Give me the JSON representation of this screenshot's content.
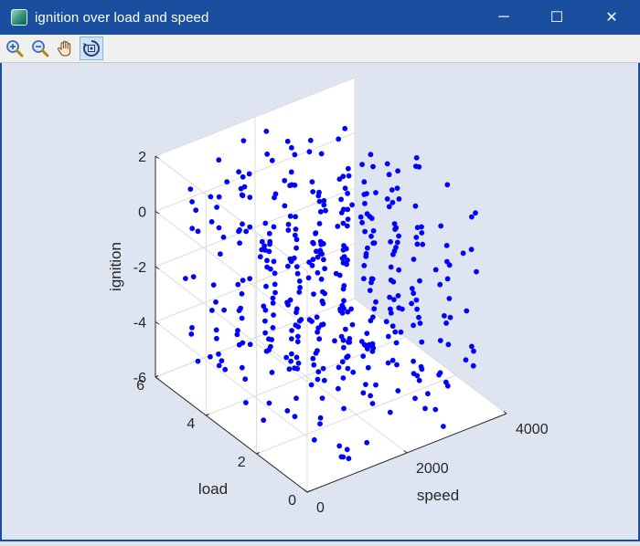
{
  "window": {
    "title": "ignition over load and speed",
    "controls": {
      "minimize": "─",
      "maximize": "☐",
      "close": "✕"
    }
  },
  "toolbar": {
    "tools": [
      {
        "name": "zoom-in",
        "active": false
      },
      {
        "name": "zoom-out",
        "active": false
      },
      {
        "name": "pan",
        "active": false
      },
      {
        "name": "rotate-3d",
        "active": true
      }
    ]
  },
  "colors": {
    "titlebar": "#1a4fa0",
    "plot_background": "#dfe5f0",
    "axes_pane": "#ffffff",
    "marker": "#0000ff"
  },
  "chart_data": {
    "type": "scatter",
    "title": "ignition over load and speed",
    "xlabel": "speed",
    "ylabel": "load",
    "zlabel": "ignition",
    "xlim": [
      0,
      4000
    ],
    "ylim": [
      0,
      6
    ],
    "zlim": [
      -6,
      2
    ],
    "xticks": [
      "0",
      "2000",
      "4000"
    ],
    "yticks": [
      "0",
      "2",
      "4",
      "6"
    ],
    "zticks": [
      "-6",
      "-4",
      "-2",
      "0",
      "2"
    ],
    "grid": true,
    "marker": "filled circle",
    "speed_levels": [
      500,
      1000,
      1500,
      2000,
      2500,
      3000,
      3500
    ],
    "load_levels": [
      0.5,
      1.5,
      2.5,
      3.5,
      4.5,
      5.5
    ],
    "points_per_column": 10,
    "point_seed": 7
  }
}
